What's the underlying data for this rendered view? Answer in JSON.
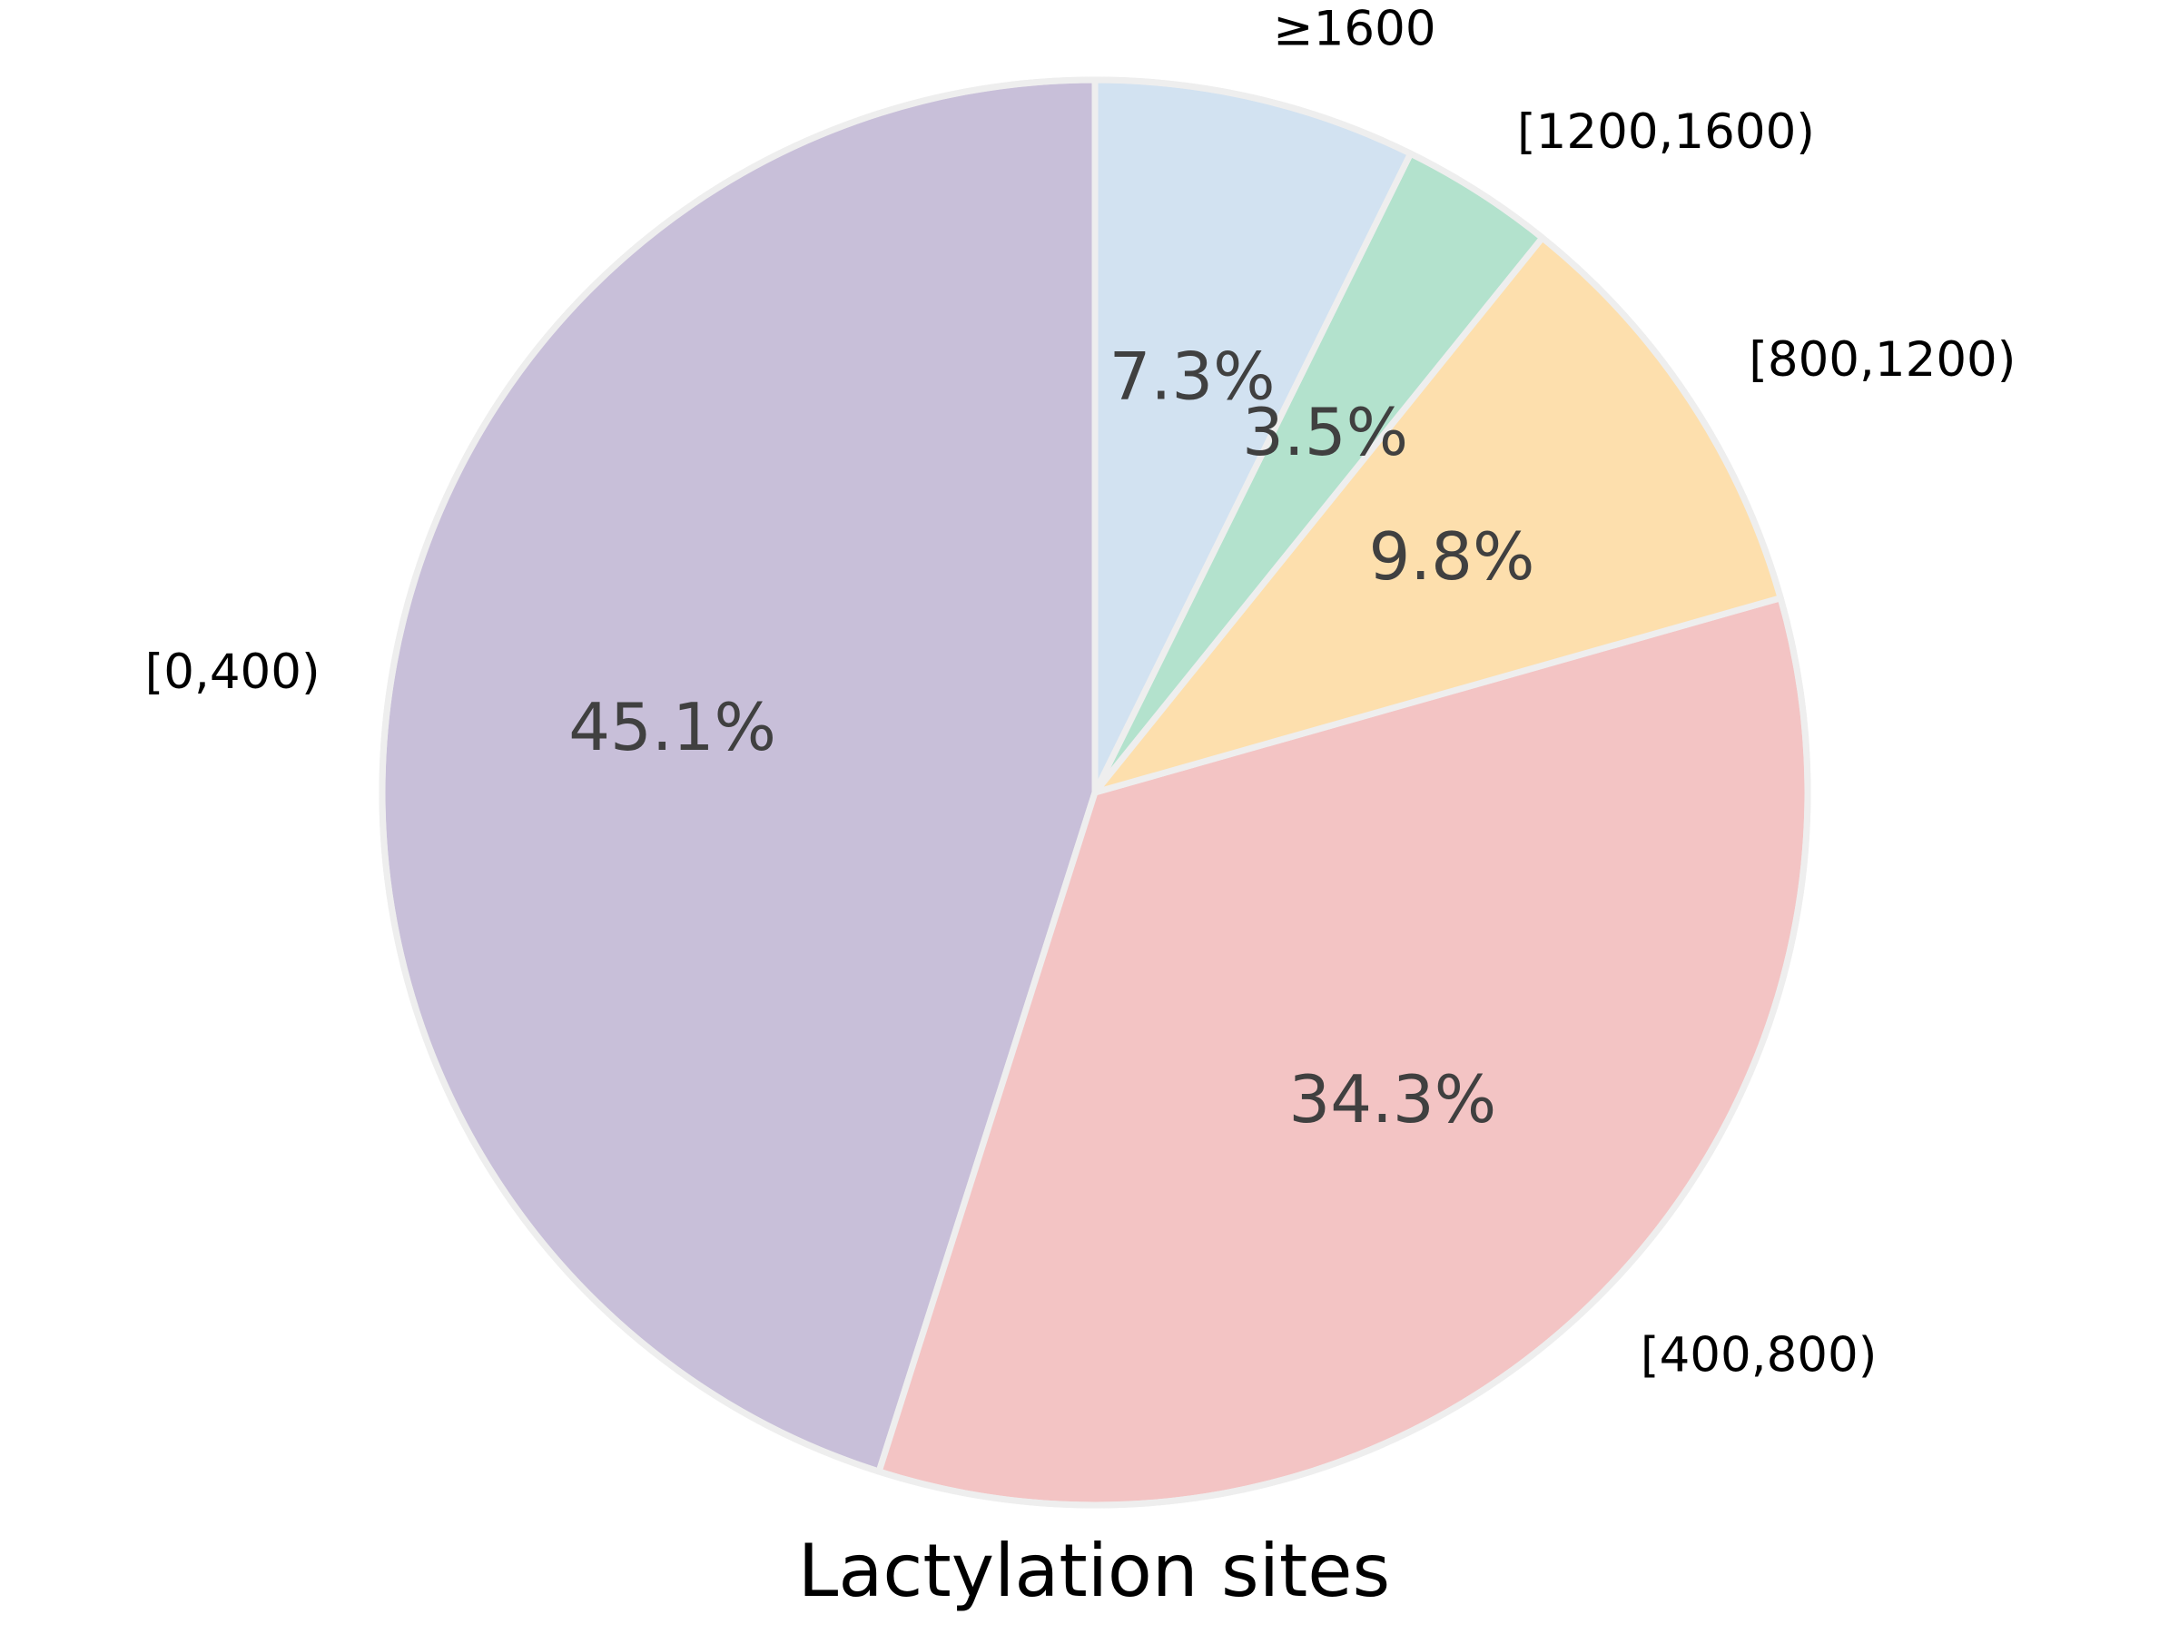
{
  "chart_data": {
    "type": "pie",
    "title": "Lactylation sites",
    "slices": [
      {
        "label": "[0,400)",
        "value": 45.1,
        "pct_label": "45.1%",
        "color": "#c8bfd9"
      },
      {
        "label": "[400,800)",
        "value": 34.3,
        "pct_label": "34.3%",
        "color": "#f3c4c4"
      },
      {
        "label": "[800,1200)",
        "value": 9.8,
        "pct_label": "9.8%",
        "color": "#fddfad"
      },
      {
        "label": "[1200,1600)",
        "value": 3.5,
        "pct_label": "3.5%",
        "color": "#b3e2cd"
      },
      {
        "label": "≥1600",
        "value": 7.3,
        "pct_label": "7.3%",
        "color": "#d2e2f1"
      }
    ],
    "start_angle": "top",
    "direction": "counterclockwise",
    "edge_color": "#eeeeee"
  }
}
